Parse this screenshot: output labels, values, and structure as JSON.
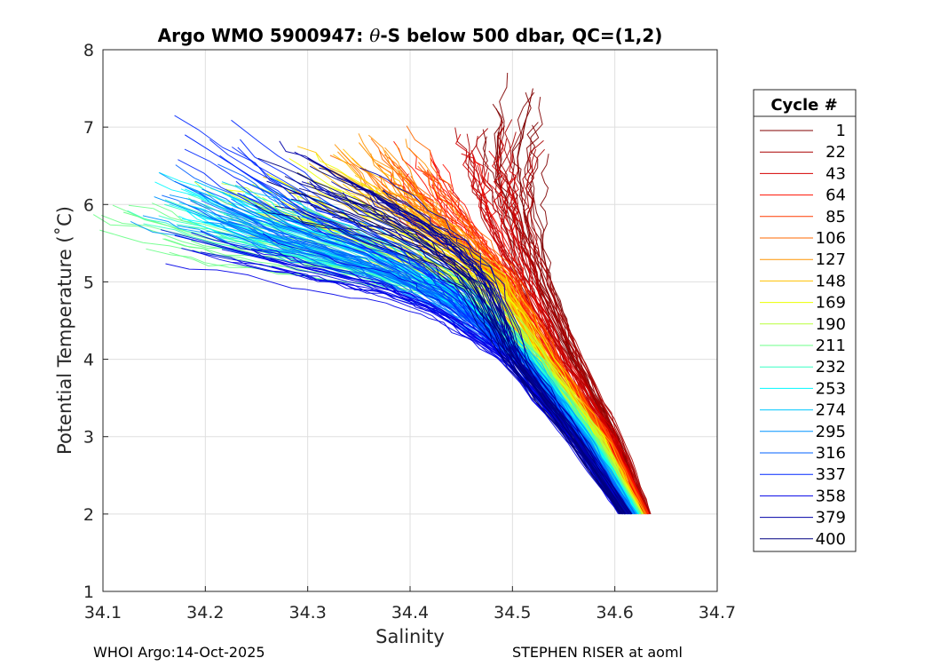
{
  "chart_data": {
    "type": "line",
    "title_prefix": "Argo WMO 5900947: ",
    "title_theta": "θ",
    "title_suffix": "-S below 500 dbar,  QC=(1,2)",
    "xlabel": "Salinity",
    "ylabel": "Potential Temperature (˚C)",
    "xlim": [
      34.1,
      34.7
    ],
    "ylim": [
      1,
      8
    ],
    "xticks": [
      34.1,
      34.2,
      34.3,
      34.4,
      34.5,
      34.6,
      34.7
    ],
    "xtick_labels": [
      "34.1",
      "34.2",
      "34.3",
      "34.4",
      "34.5",
      "34.6",
      "34.7"
    ],
    "yticks": [
      1,
      2,
      3,
      4,
      5,
      6,
      7,
      8
    ],
    "ytick_labels": [
      "1",
      "2",
      "3",
      "4",
      "5",
      "6",
      "7",
      "8"
    ],
    "grid": true,
    "legend_title": "Cycle #",
    "legend_position": "outside-right",
    "legend": [
      {
        "label": "1",
        "color": "#800000"
      },
      {
        "label": "22",
        "color": "#a80000"
      },
      {
        "label": "43",
        "color": "#d40000"
      },
      {
        "label": "64",
        "color": "#ff1000"
      },
      {
        "label": "85",
        "color": "#ff3c00"
      },
      {
        "label": "106",
        "color": "#ff6800"
      },
      {
        "label": "127",
        "color": "#ff9400"
      },
      {
        "label": "148",
        "color": "#ffc000"
      },
      {
        "label": "169",
        "color": "#ecff00"
      },
      {
        "label": "190",
        "color": "#b8ff3c"
      },
      {
        "label": "211",
        "color": "#6cff88"
      },
      {
        "label": "232",
        "color": "#38ffc4"
      },
      {
        "label": "253",
        "color": "#00f8ff"
      },
      {
        "label": "274",
        "color": "#00c8ff"
      },
      {
        "label": "295",
        "color": "#0094ff"
      },
      {
        "label": "316",
        "color": "#0060ff"
      },
      {
        "label": "337",
        "color": "#0028ff"
      },
      {
        "label": "358",
        "color": "#0000e8"
      },
      {
        "label": "379",
        "color": "#0000a8"
      },
      {
        "label": "400",
        "color": "#000080"
      }
    ],
    "series": [
      {
        "name": "1",
        "color": "#800000",
        "x": [
          34.52,
          34.505,
          34.51,
          34.53,
          34.56,
          34.6,
          34.63
        ],
        "y": [
          7.5,
          6.6,
          6.0,
          5.0,
          4.0,
          3.0,
          2.0
        ]
      },
      {
        "name": "22",
        "color": "#a80000",
        "x": [
          34.49,
          34.485,
          34.495,
          34.52,
          34.56,
          34.6,
          34.63
        ],
        "y": [
          7.1,
          6.4,
          5.8,
          5.0,
          4.0,
          3.0,
          2.0
        ]
      },
      {
        "name": "43",
        "color": "#d40000",
        "x": [
          34.46,
          34.47,
          34.48,
          34.505,
          34.545,
          34.595,
          34.628
        ],
        "y": [
          6.7,
          6.2,
          5.7,
          5.0,
          4.0,
          3.0,
          2.0
        ]
      },
      {
        "name": "64",
        "color": "#ff1000",
        "x": [
          34.42,
          34.44,
          34.465,
          34.5,
          34.54,
          34.592,
          34.627
        ],
        "y": [
          6.6,
          6.1,
          5.6,
          5.0,
          4.0,
          3.0,
          2.0
        ]
      },
      {
        "name": "85",
        "color": "#ff3c00",
        "x": [
          34.39,
          34.42,
          34.455,
          34.495,
          34.538,
          34.59,
          34.626
        ],
        "y": [
          6.5,
          6.0,
          5.5,
          5.0,
          4.0,
          3.0,
          2.0
        ]
      },
      {
        "name": "106",
        "color": "#ff6800",
        "x": [
          34.37,
          34.41,
          34.45,
          34.49,
          34.535,
          34.588,
          34.625
        ],
        "y": [
          6.7,
          6.0,
          5.5,
          5.0,
          4.0,
          3.0,
          2.0
        ]
      },
      {
        "name": "127",
        "color": "#ff9400",
        "x": [
          34.35,
          34.4,
          34.445,
          34.487,
          34.532,
          34.586,
          34.624
        ],
        "y": [
          6.8,
          6.0,
          5.5,
          5.0,
          4.0,
          3.0,
          2.0
        ]
      },
      {
        "name": "148",
        "color": "#ffc000",
        "x": [
          34.3,
          34.37,
          34.43,
          34.483,
          34.53,
          34.584,
          34.623
        ],
        "y": [
          6.6,
          6.0,
          5.5,
          5.0,
          4.0,
          3.0,
          2.0
        ]
      },
      {
        "name": "169",
        "color": "#ecff00",
        "x": [
          34.26,
          34.33,
          34.41,
          34.475,
          34.527,
          34.582,
          34.622
        ],
        "y": [
          6.4,
          5.9,
          5.4,
          5.0,
          4.0,
          3.0,
          2.0
        ]
      },
      {
        "name": "190",
        "color": "#b8ff3c",
        "x": [
          34.22,
          34.3,
          34.39,
          34.47,
          34.525,
          34.58,
          34.621
        ],
        "y": [
          6.2,
          5.7,
          5.3,
          4.9,
          4.0,
          3.0,
          2.0
        ]
      },
      {
        "name": "211",
        "color": "#6cff88",
        "x": [
          34.12,
          34.22,
          34.34,
          34.46,
          34.522,
          34.578,
          34.62
        ],
        "y": [
          5.9,
          5.5,
          5.2,
          4.9,
          4.0,
          3.0,
          2.0
        ]
      },
      {
        "name": "232",
        "color": "#38ffc4",
        "x": [
          34.16,
          34.26,
          34.36,
          34.455,
          34.52,
          34.576,
          34.619
        ],
        "y": [
          6.0,
          5.6,
          5.2,
          4.8,
          4.0,
          3.0,
          2.0
        ]
      },
      {
        "name": "253",
        "color": "#00f8ff",
        "x": [
          34.18,
          34.27,
          34.37,
          34.45,
          34.518,
          34.574,
          34.618
        ],
        "y": [
          6.2,
          5.7,
          5.3,
          4.8,
          4.0,
          3.0,
          2.0
        ]
      },
      {
        "name": "274",
        "color": "#00c8ff",
        "x": [
          34.19,
          34.28,
          34.38,
          34.445,
          34.515,
          34.572,
          34.617
        ],
        "y": [
          6.3,
          5.8,
          5.3,
          4.8,
          4.0,
          3.0,
          2.0
        ]
      },
      {
        "name": "295",
        "color": "#0094ff",
        "x": [
          34.15,
          34.25,
          34.36,
          34.44,
          34.512,
          34.57,
          34.616
        ],
        "y": [
          6.1,
          5.6,
          5.2,
          4.7,
          4.0,
          3.0,
          2.0
        ]
      },
      {
        "name": "316",
        "color": "#0060ff",
        "x": [
          34.17,
          34.26,
          34.37,
          34.435,
          34.508,
          34.566,
          34.614
        ],
        "y": [
          6.3,
          5.7,
          5.2,
          4.7,
          4.0,
          3.0,
          2.0
        ]
      },
      {
        "name": "337",
        "color": "#0028ff",
        "x": [
          34.18,
          34.3,
          34.4,
          34.45,
          34.5,
          34.56,
          34.612
        ],
        "y": [
          6.9,
          5.9,
          5.3,
          4.8,
          4.0,
          3.0,
          2.0
        ]
      },
      {
        "name": "358",
        "color": "#0000e8",
        "x": [
          34.17,
          34.29,
          34.38,
          34.43,
          34.495,
          34.556,
          34.61
        ],
        "y": [
          5.6,
          5.2,
          4.9,
          4.6,
          4.0,
          3.0,
          2.0
        ]
      },
      {
        "name": "379",
        "color": "#0000a8",
        "x": [
          34.3,
          34.37,
          34.43,
          34.47,
          34.505,
          34.562,
          34.611
        ],
        "y": [
          6.6,
          6.1,
          5.6,
          5.1,
          4.0,
          3.0,
          2.0
        ]
      },
      {
        "name": "400",
        "color": "#000080",
        "x": [
          34.26,
          34.34,
          34.41,
          34.46,
          34.5,
          34.558,
          34.61
        ],
        "y": [
          6.3,
          5.9,
          5.5,
          5.0,
          4.0,
          3.0,
          2.0
        ]
      }
    ]
  },
  "footer": {
    "left": "WHOI Argo:14-Oct-2025",
    "right": "STEPHEN RISER at aoml"
  }
}
